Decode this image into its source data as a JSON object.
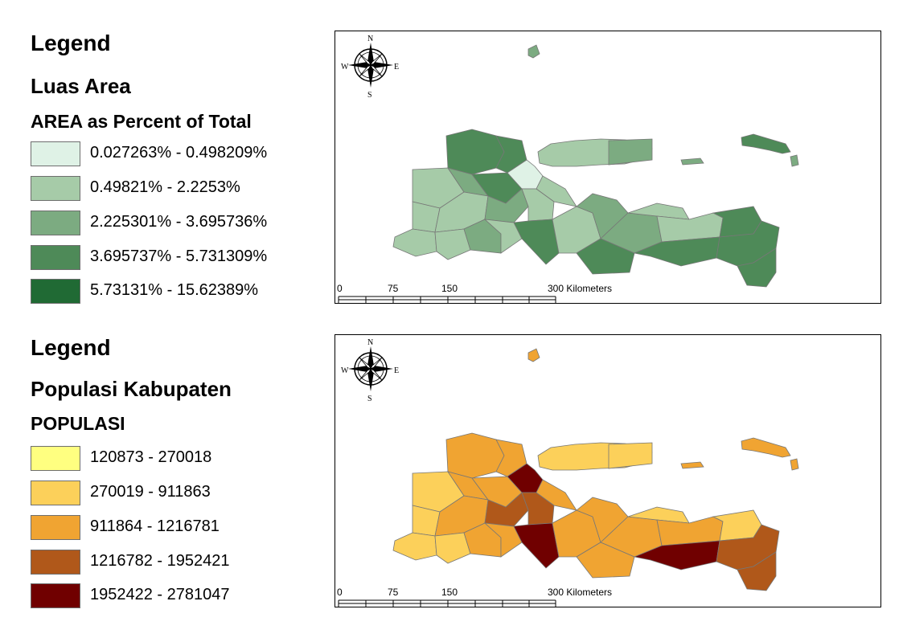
{
  "legend_area": {
    "legend_heading": "Legend",
    "layer_name": "Luas Area",
    "field_name": "AREA as Percent of Total",
    "classes": [
      {
        "label": "0.027263% - 0.498209%",
        "color": "#dff2e6"
      },
      {
        "label": "0.49821% - 2.2253%",
        "color": "#a6cba8"
      },
      {
        "label": "2.225301% - 3.695736%",
        "color": "#7cab81"
      },
      {
        "label": "3.695737% - 5.731309%",
        "color": "#4e8a58"
      },
      {
        "label": "5.73131% - 15.62389%",
        "color": "#206a34"
      }
    ]
  },
  "legend_population": {
    "legend_heading": "Legend",
    "layer_name": "Populasi Kabupaten",
    "field_name": "POPULASI",
    "classes": [
      {
        "label": "120873 - 270018",
        "color": "#ffff80"
      },
      {
        "label": "270019 - 911863",
        "color": "#fcd05a"
      },
      {
        "label": "911864 - 1216781",
        "color": "#f0a432"
      },
      {
        "label": "1216782 - 1952421",
        "color": "#b0581a"
      },
      {
        "label": "1952422 - 2781047",
        "color": "#700000"
      }
    ]
  },
  "compass": {
    "north": "N",
    "south": "S",
    "east": "E",
    "west": "W"
  },
  "scalebar": {
    "ticks": [
      "0",
      "75",
      "150",
      "300"
    ],
    "unit": "Kilometers"
  },
  "colors": {
    "boundary": "#777777",
    "frame": "#000000"
  }
}
